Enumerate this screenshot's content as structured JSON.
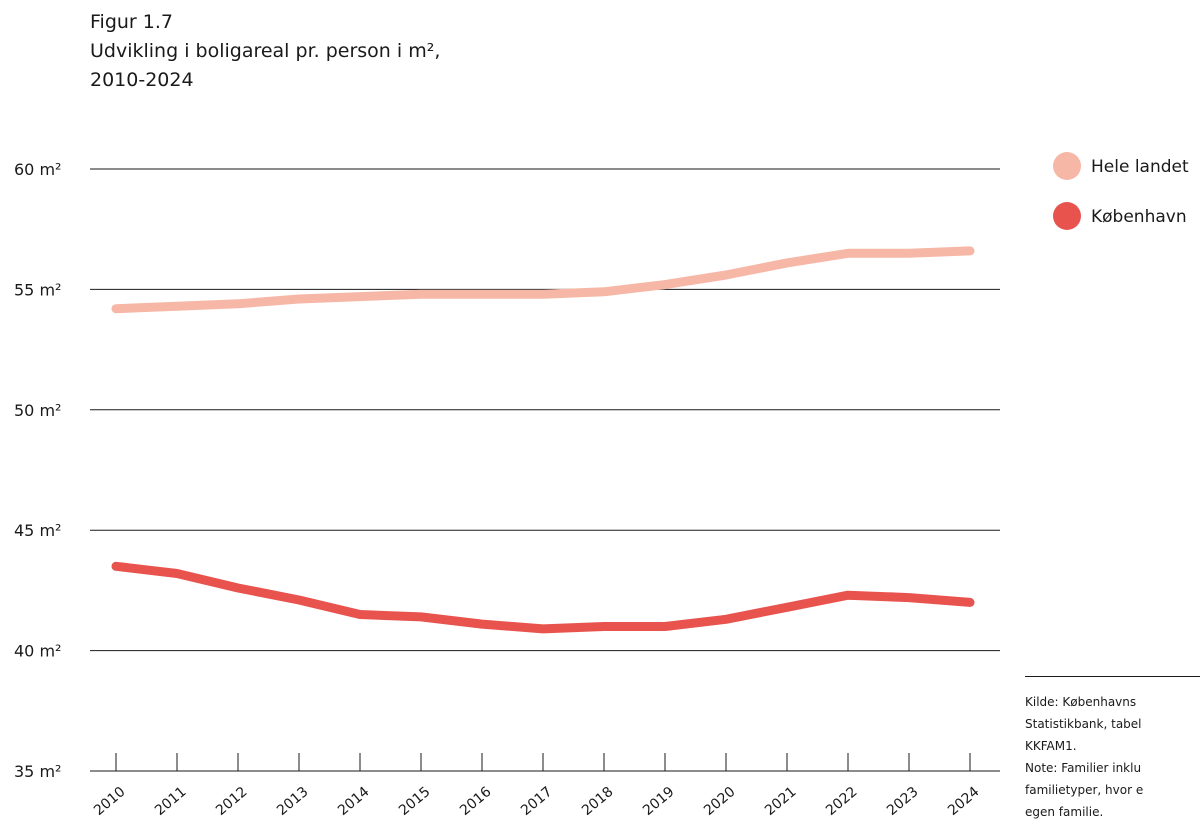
{
  "figure_label": "Figur 1.7",
  "title_line1": "Udvikling i boligareal pr. person i m²,",
  "title_line2": "2010-2024",
  "chart_data": {
    "type": "line",
    "x": [
      "2010",
      "2011",
      "2012",
      "2013",
      "2014",
      "2015",
      "2016",
      "2017",
      "2018",
      "2019",
      "2020",
      "2021",
      "2022",
      "2023",
      "2024"
    ],
    "ylim": [
      35,
      60
    ],
    "y_ticks": [
      60,
      55,
      50,
      45,
      40,
      35
    ],
    "y_tick_labels": [
      "60 m²",
      "55 m²",
      "50 m²",
      "45 m²",
      "40 m²",
      "35 m²"
    ],
    "grid": true,
    "legend_position": "top-right",
    "series": [
      {
        "name": "Hele landet",
        "color": "#f6b7a6",
        "values": [
          54.2,
          54.3,
          54.4,
          54.6,
          54.7,
          54.8,
          54.8,
          54.8,
          54.9,
          55.2,
          55.6,
          56.1,
          56.5,
          56.5,
          56.6
        ]
      },
      {
        "name": "København",
        "color": "#e8534e",
        "values": [
          43.5,
          43.2,
          42.6,
          42.1,
          41.5,
          41.4,
          41.1,
          40.9,
          41.0,
          41.0,
          41.3,
          41.8,
          42.3,
          42.2,
          42.0
        ]
      }
    ]
  },
  "notes": {
    "line1": "Kilde: Københavns",
    "line2": "Statistikbank, tabel",
    "line3": "KKFAM1.",
    "line4": "Note: Familier inklu",
    "line5": "familietyper, hvor e",
    "line6": "egen familie."
  }
}
